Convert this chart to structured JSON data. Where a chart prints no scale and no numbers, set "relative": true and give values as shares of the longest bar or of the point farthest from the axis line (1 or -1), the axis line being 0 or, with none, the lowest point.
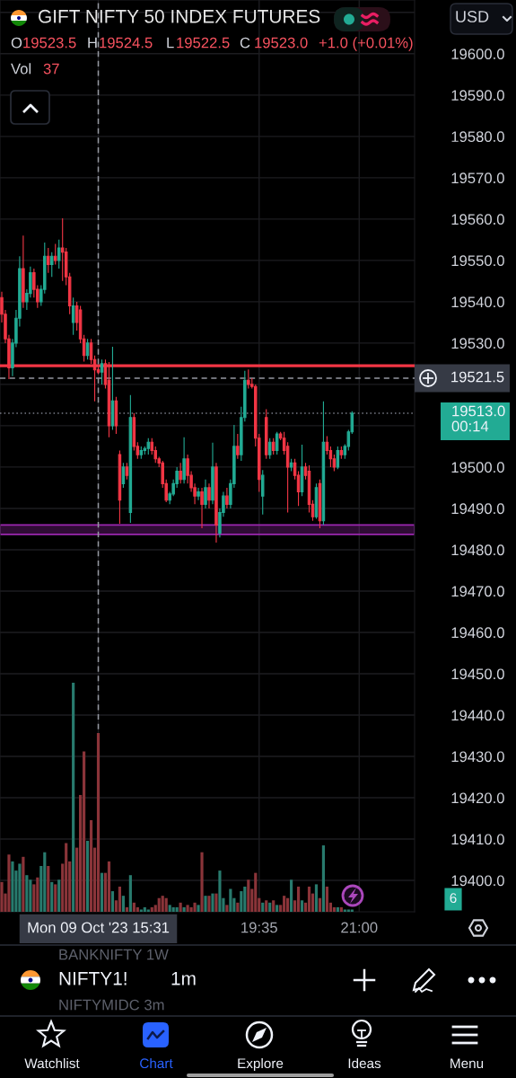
{
  "chart_data": [
    {
      "type": "candlestick",
      "title": "GIFT NIFTY 50 INDEX FUTURES",
      "categories": [
        null,
        null,
        null,
        null,
        null,
        null,
        null,
        null,
        null,
        null,
        null,
        null,
        null,
        null,
        null,
        null,
        null,
        null,
        null,
        null,
        null,
        null,
        null,
        null,
        null,
        null,
        null,
        "Mon 09 Oct '23 15:31",
        null,
        null,
        null,
        null,
        null,
        null,
        null,
        null,
        null,
        null,
        null,
        null,
        null,
        null,
        null,
        null,
        null,
        null,
        null,
        null,
        null,
        null,
        null,
        null,
        null,
        null,
        null,
        null,
        null,
        null,
        null,
        null,
        null,
        null,
        null,
        null,
        null,
        null,
        null,
        null,
        null,
        null,
        null,
        null,
        "19:35",
        null,
        null,
        null,
        null,
        null,
        null,
        null,
        null,
        null,
        null,
        null,
        null,
        null,
        null,
        null,
        null,
        null,
        null,
        null,
        null,
        null,
        null,
        null,
        null,
        null,
        null,
        null,
        "21:00",
        null,
        null,
        null,
        null,
        null,
        null,
        null,
        null,
        null,
        null,
        null,
        null,
        null,
        null,
        null
      ],
      "ohlc": [
        [
          19541,
          19542.4,
          19535,
          19537
        ],
        [
          19537,
          19538,
          19530,
          19531
        ],
        [
          19531,
          19532,
          19521.3,
          19524
        ],
        [
          19524,
          19531,
          19522,
          19530
        ],
        [
          19530,
          19538,
          19529,
          19536
        ],
        [
          19536,
          19551,
          19534,
          19548
        ],
        [
          19548,
          19556,
          19538.5,
          19540
        ],
        [
          19540,
          19543,
          19538,
          19542
        ],
        [
          19542,
          19548.5,
          19541,
          19547
        ],
        [
          19547,
          19548,
          19541,
          19543
        ],
        [
          19543,
          19544,
          19538.5,
          19540
        ],
        [
          19540,
          19544,
          19539,
          19543
        ],
        [
          19543,
          19554.3,
          19542,
          19551
        ],
        [
          19551,
          19553,
          19547,
          19549
        ],
        [
          19549,
          19552,
          19546,
          19551
        ],
        [
          19551,
          19554,
          19549,
          19550
        ],
        [
          19550,
          19555,
          19548,
          19553
        ],
        [
          19553,
          19560.2,
          19545,
          19552
        ],
        [
          19552,
          19553,
          19544,
          19546
        ],
        [
          19546,
          19547,
          19537,
          19539
        ],
        [
          19535,
          19541,
          19532,
          19539
        ],
        [
          19539,
          19540,
          19533,
          19535
        ],
        [
          19538,
          19539,
          19530,
          19531
        ],
        [
          19531,
          19532,
          19525.5,
          19527
        ],
        [
          19527,
          19531,
          19526,
          19530
        ],
        [
          19530,
          19531,
          19525,
          19526
        ],
        [
          19526,
          19527,
          19515.9,
          19523.5
        ],
        [
          19523.5,
          19524.5,
          19522.5,
          19523.0
        ],
        [
          19523,
          19526,
          19520,
          19525
        ],
        [
          19525,
          19526,
          19519,
          19520
        ],
        [
          19521,
          19525.4,
          19507.2,
          19510
        ],
        [
          19510,
          19529.1,
          19509,
          19516
        ],
        [
          19516,
          19517,
          19508,
          19510
        ],
        [
          19503,
          19504,
          19486.3,
          19492
        ],
        [
          19496,
          19501,
          19495,
          19500
        ],
        [
          19500,
          19501,
          19497,
          19498
        ],
        [
          19489,
          19517.4,
          19486.5,
          19512
        ],
        [
          19512,
          19513,
          19504,
          19505
        ],
        [
          19505,
          19506,
          19502,
          19503
        ],
        [
          19503,
          19505,
          19502,
          19504
        ],
        [
          19504,
          19505,
          19503,
          19504.5
        ],
        [
          19504.5,
          19507,
          19503,
          19506
        ],
        [
          19506,
          19507,
          19503,
          19504
        ],
        [
          19504,
          19505,
          19501,
          19502
        ],
        [
          19502,
          19502.5,
          19500,
          19501
        ],
        [
          19501,
          19501.5,
          19495,
          19496
        ],
        [
          19496,
          19497,
          19491.5,
          19492
        ],
        [
          19492,
          19494,
          19491,
          19493.5
        ],
        [
          19493.5,
          19497,
          19493,
          19496
        ],
        [
          19496,
          19500,
          19495,
          19499
        ],
        [
          19499,
          19501,
          19496,
          19497
        ],
        [
          19497,
          19507.2,
          19496,
          19502
        ],
        [
          19502,
          19503,
          19496,
          19498
        ],
        [
          19498,
          19499,
          19494,
          19495
        ],
        [
          19495,
          19496,
          19491,
          19493
        ],
        [
          19493,
          19495,
          19492,
          19494
        ],
        [
          19494,
          19495,
          19485.2,
          19491
        ],
        [
          19491,
          19497,
          19490,
          19495
        ],
        [
          19495,
          19496,
          19490,
          19492
        ],
        [
          19492,
          19505.9,
          19491,
          19500
        ],
        [
          19500,
          19501,
          19481.7,
          19486
        ],
        [
          19484,
          19490,
          19483,
          19489
        ],
        [
          19489,
          19494,
          19488,
          19493
        ],
        [
          19493,
          19495,
          19490,
          19491
        ],
        [
          19491,
          19497,
          19490,
          19496
        ],
        [
          19496,
          19510.2,
          19495,
          19505
        ],
        [
          19505,
          19508,
          19502,
          19503
        ],
        [
          19503,
          19514.6,
          19501.5,
          19512
        ],
        [
          19512,
          19523.3,
          19511,
          19521
        ],
        [
          19521,
          19523.6,
          19519,
          19520
        ],
        [
          19520,
          19521.5,
          19519,
          19519.5
        ],
        [
          19519.5,
          19520,
          19505,
          19507
        ],
        [
          19507,
          19508,
          19494,
          19497
        ],
        [
          19493,
          19499.3,
          19488.5,
          19498
        ],
        [
          19512,
          19514,
          19502,
          19503
        ],
        [
          19503,
          19507,
          19502,
          19506
        ],
        [
          19506,
          19507,
          19503,
          19504
        ],
        [
          19504,
          19508.5,
          19503,
          19508
        ],
        [
          19508,
          19508.5,
          19506.5,
          19507
        ],
        [
          19507,
          19508.5,
          19503,
          19504
        ],
        [
          19505,
          19506,
          19489,
          19500
        ],
        [
          19500,
          19502,
          19499,
          19501
        ],
        [
          19501,
          19502,
          19497,
          19498
        ],
        [
          19498,
          19499,
          19490.6,
          19494
        ],
        [
          19494,
          19505.4,
          19493,
          19500
        ],
        [
          19500,
          19501,
          19497,
          19498
        ],
        [
          19499,
          19500.4,
          19489,
          19491
        ],
        [
          19491,
          19492,
          19487,
          19488
        ],
        [
          19488,
          19496,
          19487.5,
          19495
        ],
        [
          19496,
          19497,
          19485.2,
          19487
        ],
        [
          19487,
          19515.9,
          19486,
          19506
        ],
        [
          19506,
          19507.5,
          19503,
          19504
        ],
        [
          19504,
          19505,
          19500,
          19502
        ],
        [
          19502,
          19503,
          19499,
          19500
        ],
        [
          19500,
          19505,
          19499.5,
          19504
        ],
        [
          19504,
          19505,
          19502,
          19503
        ],
        [
          19503,
          19505.5,
          19502,
          19505
        ],
        [
          19505,
          19509,
          19504,
          19508.5
        ],
        [
          19508.5,
          19513.5,
          19508,
          19513
        ],
        null,
        null,
        null,
        null,
        null,
        null,
        null,
        null,
        null,
        null,
        null,
        null,
        null,
        null,
        null,
        null,
        null
      ],
      "colors": [
        "#f23645",
        "#f23645",
        "#f23645",
        "#22ab94",
        "#22ab94",
        "#22ab94",
        "#f23645",
        "#22ab94",
        "#22ab94",
        "#f23645",
        "#f23645",
        "#22ab94",
        "#22ab94",
        "#f23645",
        "#22ab94",
        "#f23645",
        "#22ab94",
        "#f23645",
        "#f23645",
        "#f23645",
        "#22ab94",
        "#f23645",
        "#f23645",
        "#f23645",
        "#22ab94",
        "#f23645",
        "#f23645",
        "#f23645",
        "#22ab94",
        "#f23645",
        "#f23645",
        "#22ab94",
        "#f23645",
        "#f23645",
        "#22ab94",
        "#f23645",
        "#22ab94",
        "#f23645",
        "#f23645",
        "#22ab94",
        "#22ab94",
        "#22ab94",
        "#f23645",
        "#f23645",
        "#f23645",
        "#f23645",
        "#f23645",
        "#22ab94",
        "#22ab94",
        "#22ab94",
        "#f23645",
        "#22ab94",
        "#f23645",
        "#f23645",
        "#f23645",
        "#22ab94",
        "#f23645",
        "#22ab94",
        "#f23645",
        "#22ab94",
        "#f23645",
        "#22ab94",
        "#22ab94",
        "#f23645",
        "#22ab94",
        "#22ab94",
        "#f23645",
        "#22ab94",
        "#22ab94",
        "#f23645",
        "#f23645",
        "#f23645",
        "#f23645",
        "#22ab94",
        "#f23645",
        "#22ab94",
        "#f23645",
        "#22ab94",
        "#f23645",
        "#f23645",
        "#f23645",
        "#22ab94",
        "#f23645",
        "#f23645",
        "#22ab94",
        "#f23645",
        "#f23645",
        "#f23645",
        "#22ab94",
        "#f23645",
        "#22ab94",
        "#f23645",
        "#f23645",
        "#f23645",
        "#22ab94",
        "#f23645",
        "#22ab94",
        "#22ab94",
        "#22ab94",
        null,
        null,
        null,
        null,
        null,
        null,
        null,
        null,
        null,
        null,
        null,
        null,
        null,
        null,
        null,
        null,
        null
      ],
      "ylim": [
        19392.4,
        19613
      ],
      "yticks": [
        {
          "value": 19400,
          "label": "19400.0"
        },
        {
          "value": 19410,
          "label": "19410.0"
        },
        {
          "value": 19420,
          "label": "19420.0"
        },
        {
          "value": 19430,
          "label": "19430.0"
        },
        {
          "value": 19440,
          "label": "19440.0"
        },
        {
          "value": 19450,
          "label": "19450.0"
        },
        {
          "value": 19460,
          "label": "19460.0"
        },
        {
          "value": 19470,
          "label": "19470.0"
        },
        {
          "value": 19480,
          "label": "19480.0"
        },
        {
          "value": 19490,
          "label": "19490.0"
        },
        {
          "value": 19500,
          "label": "19500.0"
        },
        {
          "value": 19510,
          "label": null
        },
        {
          "value": 19520,
          "label": null
        },
        {
          "value": 19530,
          "label": "19530.0"
        },
        {
          "value": 19540,
          "label": "19540.0"
        },
        {
          "value": 19550,
          "label": "19550.0"
        },
        {
          "value": 19560,
          "label": "19560.0"
        },
        {
          "value": 19570,
          "label": "19570.0"
        },
        {
          "value": 19580,
          "label": "19580.0"
        },
        {
          "value": 19590,
          "label": "19590.0"
        },
        {
          "value": 19600,
          "label": "19600.0"
        },
        {
          "value": 19610,
          "label": null
        }
      ],
      "grid": true,
      "ref_lines": [
        {
          "axis": "y",
          "value": 19524.5,
          "color": "#f23645",
          "line_style": "solid"
        },
        {
          "axis": "y",
          "value": 19521.5,
          "label": "19521.5",
          "color": "#9598a1",
          "line_style": "dashed"
        },
        {
          "axis": "y",
          "value": 19513.0,
          "label": "19513.0\n00:14",
          "color": "#787b86",
          "line_style": "dotted"
        },
        {
          "axis": "x",
          "value": "Mon 09 Oct '23 15:31",
          "color": "#9598a1",
          "line_style": "dashed"
        }
      ],
      "bands": [
        {
          "axis": "y",
          "from": 19483.7,
          "to": 19486.0,
          "color": "#9c27b0"
        }
      ],
      "annotations": [
        "O",
        "19523.5",
        "H",
        "19524.5",
        "L",
        "19522.5",
        "C",
        "19523.0",
        "+1.0 (+0.01%)",
        "USD",
        "BANKNIFTY 1W",
        "NIFTY1!",
        "1m",
        "NIFTYMIDC 3m",
        "Watchlist",
        "Chart",
        "Explore",
        "Ideas",
        "Menu"
      ]
    },
    {
      "type": "bar",
      "relative": true,
      "categories": [
        null,
        null,
        null,
        null,
        null,
        null,
        null,
        null,
        null,
        null,
        null,
        null,
        null,
        null,
        null,
        null,
        null,
        null,
        null,
        null,
        null,
        null,
        null,
        null,
        null,
        null,
        null,
        null,
        null,
        null,
        null,
        null,
        null,
        null,
        null,
        null,
        null,
        null,
        null,
        null,
        null,
        null,
        null,
        null,
        null,
        null,
        null,
        null,
        null,
        null,
        null,
        null,
        null,
        null,
        null,
        null,
        null,
        null,
        null,
        null,
        null,
        null,
        null,
        null,
        null,
        null,
        null,
        null,
        null,
        null,
        null,
        null,
        null,
        null,
        null,
        null,
        null,
        null,
        null,
        null,
        null,
        null,
        null,
        null,
        null,
        null,
        null,
        null,
        null,
        null,
        null,
        null,
        null,
        null,
        null,
        null,
        null,
        null,
        null,
        null,
        null,
        null,
        null,
        null,
        null,
        null,
        null,
        null,
        null,
        null,
        null,
        null,
        null,
        null,
        null,
        null
      ],
      "values": [
        0.13,
        0.08,
        0.25,
        0.22,
        0.18,
        0.21,
        0.24,
        0.16,
        0.14,
        0.12,
        0.15,
        0.2,
        0.26,
        0.2,
        0.13,
        0.12,
        0.14,
        0.21,
        0.3,
        0.22,
        1,
        0.28,
        0.51,
        0.7,
        0.31,
        0.4,
        0.28,
        0.78,
        0.17,
        0.17,
        0.22,
        0.09,
        0.05,
        0.11,
        0.07,
        0.02,
        0.16,
        0.04,
        0.02,
        0.01,
        0.02,
        0.01,
        0.02,
        0.03,
        0.06,
        0.07,
        0.06,
        0.03,
        0.02,
        0.02,
        0.04,
        0.02,
        0.03,
        0.02,
        0.04,
        0.03,
        0.26,
        0.07,
        0.07,
        0.08,
        0.08,
        0.18,
        0.06,
        0.03,
        0.1,
        0.06,
        0.04,
        0.09,
        0.11,
        0.14,
        0.1,
        0.17,
        0.06,
        0.04,
        0.05,
        0.04,
        0.05,
        0.03,
        0.03,
        0.07,
        0.06,
        0.14,
        0.05,
        0.11,
        0.05,
        0.04,
        0.11,
        0.08,
        0.12,
        0.06,
        0.29,
        0.11,
        0.04,
        0.02,
        0.02,
        0.02,
        0.01,
        0.01,
        0.01,
        null,
        null,
        null,
        null,
        null,
        null,
        null,
        null,
        null,
        null,
        null,
        null,
        null,
        null,
        null,
        null,
        null
      ],
      "colors": [
        "#8a3439",
        "#8a3439",
        "#8a3439",
        "#287a6d",
        "#287a6d",
        "#287a6d",
        "#8a3439",
        "#287a6d",
        "#287a6d",
        "#8a3439",
        "#8a3439",
        "#287a6d",
        "#287a6d",
        "#8a3439",
        "#287a6d",
        "#8a3439",
        "#287a6d",
        "#8a3439",
        "#8a3439",
        "#8a3439",
        "#287a6d",
        "#8a3439",
        "#8a3439",
        "#8a3439",
        "#287a6d",
        "#8a3439",
        "#8a3439",
        "#8a3439",
        "#287a6d",
        "#8a3439",
        "#8a3439",
        "#287a6d",
        "#8a3439",
        "#8a3439",
        "#287a6d",
        "#8a3439",
        "#287a6d",
        "#8a3439",
        "#8a3439",
        "#287a6d",
        "#287a6d",
        "#287a6d",
        "#8a3439",
        "#8a3439",
        "#8a3439",
        "#8a3439",
        "#8a3439",
        "#287a6d",
        "#287a6d",
        "#287a6d",
        "#8a3439",
        "#287a6d",
        "#8a3439",
        "#8a3439",
        "#8a3439",
        "#287a6d",
        "#8a3439",
        "#287a6d",
        "#8a3439",
        "#287a6d",
        "#8a3439",
        "#287a6d",
        "#287a6d",
        "#8a3439",
        "#287a6d",
        "#287a6d",
        "#8a3439",
        "#287a6d",
        "#287a6d",
        "#8a3439",
        "#8a3439",
        "#8a3439",
        "#8a3439",
        "#287a6d",
        "#8a3439",
        "#287a6d",
        "#8a3439",
        "#287a6d",
        "#8a3439",
        "#8a3439",
        "#8a3439",
        "#287a6d",
        "#8a3439",
        "#8a3439",
        "#287a6d",
        "#8a3439",
        "#8a3439",
        "#8a3439",
        "#287a6d",
        "#8a3439",
        "#287a6d",
        "#8a3439",
        "#8a3439",
        "#8a3439",
        "#287a6d",
        "#8a3439",
        "#287a6d",
        "#287a6d",
        "#287a6d",
        null,
        null,
        null,
        null,
        null,
        null,
        null,
        null,
        null,
        null,
        null,
        null,
        null,
        null,
        null,
        null,
        null
      ],
      "annotations": [
        "Vol",
        "37",
        "6"
      ]
    }
  ]
}
